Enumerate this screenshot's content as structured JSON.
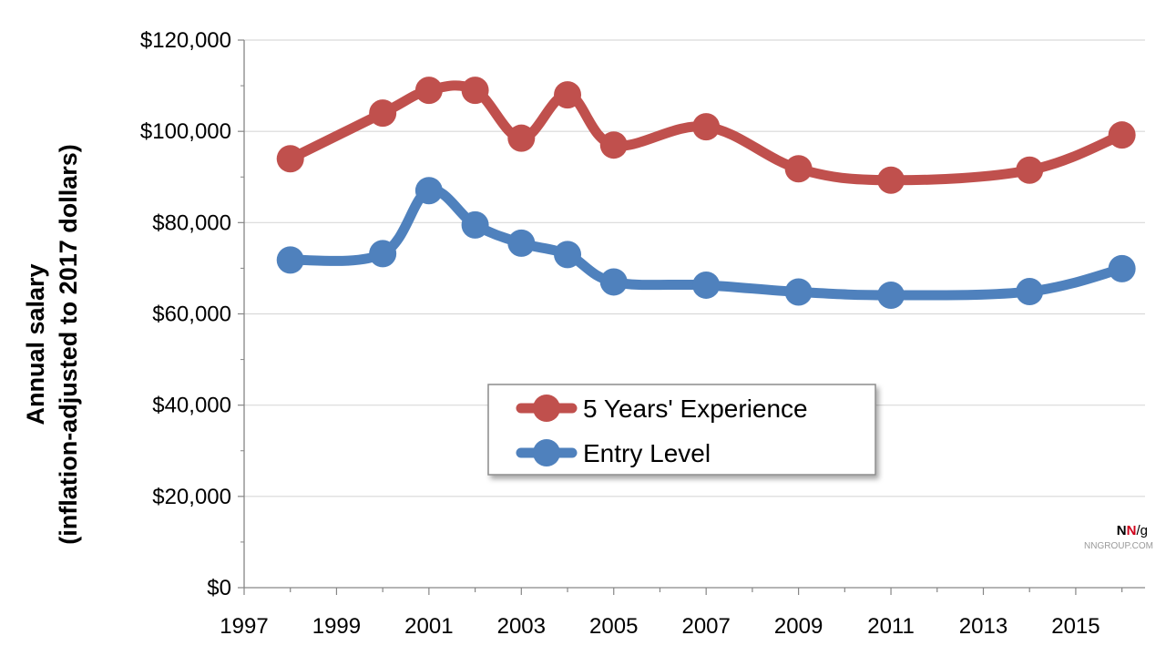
{
  "chart_data": {
    "type": "line",
    "ylabel_line1": "Annual salary",
    "ylabel_line2": "(inflation-adjusted  to 2017  dollars)",
    "xlim": [
      1997,
      2016.5
    ],
    "ylim": [
      0,
      120000
    ],
    "x_ticks": [
      1997,
      1999,
      2001,
      2003,
      2005,
      2007,
      2009,
      2011,
      2013,
      2015
    ],
    "x_tick_labels": [
      "1997",
      "1999",
      "2001",
      "2003",
      "2005",
      "2007",
      "2009",
      "2011",
      "2013",
      "2015"
    ],
    "y_ticks": [
      0,
      20000,
      40000,
      60000,
      80000,
      100000,
      120000
    ],
    "y_tick_labels": [
      "$0",
      "$20,000",
      "$40,000",
      "$60,000",
      "$80,000",
      "$100,000",
      "$120,000"
    ],
    "grid": "horizontal",
    "legend_position": "center",
    "series": [
      {
        "name": "5 Years' Experience",
        "color": "#c0504d",
        "points": [
          {
            "x": 1998,
            "y": 94000
          },
          {
            "x": 2000,
            "y": 104000
          },
          {
            "x": 2001,
            "y": 109000
          },
          {
            "x": 2002,
            "y": 109000
          },
          {
            "x": 2003,
            "y": 98500
          },
          {
            "x": 2004,
            "y": 108000
          },
          {
            "x": 2005,
            "y": 97000
          },
          {
            "x": 2007,
            "y": 101000
          },
          {
            "x": 2009,
            "y": 91800
          },
          {
            "x": 2011,
            "y": 89300
          },
          {
            "x": 2014,
            "y": 91500
          },
          {
            "x": 2016,
            "y": 99200
          }
        ]
      },
      {
        "name": "Entry Level",
        "color": "#4f81bd",
        "points": [
          {
            "x": 1998,
            "y": 71800
          },
          {
            "x": 2000,
            "y": 73200
          },
          {
            "x": 2001,
            "y": 87000
          },
          {
            "x": 2002,
            "y": 79500
          },
          {
            "x": 2003,
            "y": 75500
          },
          {
            "x": 2004,
            "y": 73000
          },
          {
            "x": 2005,
            "y": 67000
          },
          {
            "x": 2007,
            "y": 66300
          },
          {
            "x": 2009,
            "y": 64800
          },
          {
            "x": 2011,
            "y": 64100
          },
          {
            "x": 2014,
            "y": 64900
          },
          {
            "x": 2016,
            "y": 69900
          }
        ]
      }
    ]
  },
  "logo": {
    "mark_n1": "N",
    "mark_n2": "N",
    "mark_g": "/g",
    "site": "NNGROUP.COM"
  }
}
